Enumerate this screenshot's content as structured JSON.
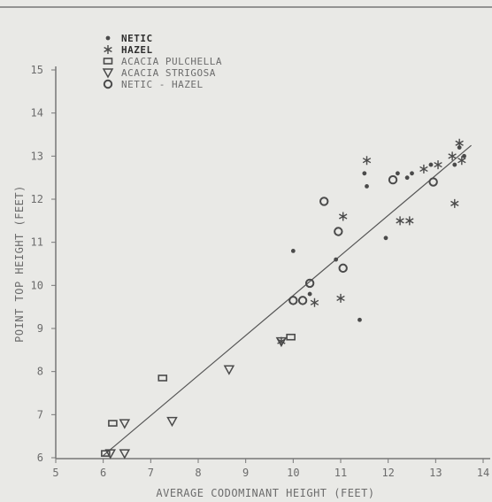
{
  "chart_data": {
    "type": "scatter",
    "title": "",
    "xlabel": "AVERAGE CODOMINANT HEIGHT (FEET)",
    "ylabel": "POINT TOP HEIGHT (FEET)",
    "xlim": [
      5,
      14
    ],
    "ylim": [
      6,
      15
    ],
    "x_ticks": [
      "5",
      "6",
      "7",
      "8",
      "9",
      "10",
      "11",
      "12",
      "13",
      "14"
    ],
    "y_ticks": [
      "6",
      "7",
      "8",
      "9",
      "10",
      "11",
      "12",
      "13",
      "14",
      "15"
    ],
    "legend_position": "top-left",
    "grid": false,
    "series": [
      {
        "name": "NETIC",
        "marker": "dot",
        "points": [
          [
            10.0,
            10.8
          ],
          [
            10.35,
            9.8
          ],
          [
            10.9,
            10.6
          ],
          [
            11.4,
            9.2
          ],
          [
            11.5,
            12.6
          ],
          [
            11.55,
            12.3
          ],
          [
            11.95,
            11.1
          ],
          [
            12.2,
            12.6
          ],
          [
            12.4,
            12.5
          ],
          [
            12.5,
            12.6
          ],
          [
            12.9,
            12.8
          ],
          [
            13.4,
            12.8
          ],
          [
            13.5,
            13.2
          ],
          [
            13.6,
            13.0
          ]
        ]
      },
      {
        "name": "HAZEL",
        "marker": "asterisk",
        "points": [
          [
            11.05,
            11.6
          ],
          [
            11.0,
            9.7
          ],
          [
            10.45,
            9.6
          ],
          [
            11.55,
            12.9
          ],
          [
            12.25,
            11.5
          ],
          [
            12.45,
            11.5
          ],
          [
            12.75,
            12.7
          ],
          [
            13.05,
            12.8
          ],
          [
            13.35,
            13.0
          ],
          [
            13.5,
            13.3
          ],
          [
            13.55,
            12.9
          ],
          [
            13.4,
            11.9
          ],
          [
            9.75,
            8.7
          ]
        ]
      },
      {
        "name": "ACACIA PULCHELLA",
        "marker": "square",
        "points": [
          [
            6.05,
            6.1
          ],
          [
            6.2,
            6.8
          ],
          [
            7.25,
            7.85
          ],
          [
            9.95,
            8.8
          ]
        ]
      },
      {
        "name": "ACACIA STRIGOSA",
        "marker": "triangle",
        "points": [
          [
            6.15,
            6.1
          ],
          [
            6.45,
            6.1
          ],
          [
            6.45,
            6.8
          ],
          [
            7.45,
            6.85
          ],
          [
            8.65,
            8.05
          ],
          [
            9.75,
            8.7
          ]
        ]
      },
      {
        "name": "NETIC - HAZEL",
        "marker": "circle",
        "points": [
          [
            10.0,
            9.65
          ],
          [
            10.2,
            9.65
          ],
          [
            10.35,
            10.05
          ],
          [
            10.65,
            11.95
          ],
          [
            10.95,
            11.25
          ],
          [
            11.05,
            10.4
          ],
          [
            12.1,
            12.45
          ],
          [
            12.95,
            12.4
          ]
        ]
      }
    ],
    "fit_line": {
      "points": [
        [
          6.0,
          6.05
        ],
        [
          13.75,
          13.25
        ]
      ]
    }
  },
  "style": {
    "background": "#e9e9e6",
    "axis_color": "#777777",
    "mark_color": "#4a4a4a"
  }
}
